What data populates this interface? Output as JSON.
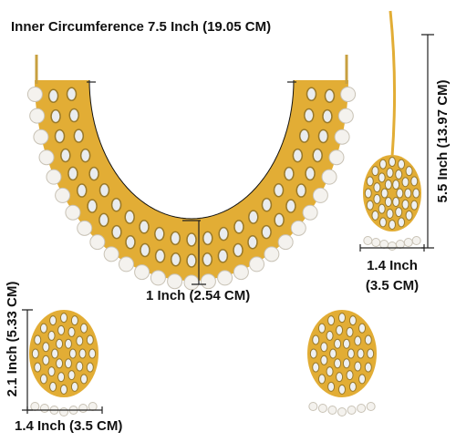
{
  "necklace": {
    "circumference": "Inner Circumference 7.5 Inch (19.05 CM)",
    "depth": "1 Inch (2.54 CM)"
  },
  "maang_tikka": {
    "height": "5.5 Inch (13.97 CM)",
    "width_inch": "1.4 Inch",
    "width_cm": "(3.5 CM)"
  },
  "earring": {
    "height": "2.1 Inch (5.33 CM)",
    "width": "1.4 Inch (3.5 CM)"
  }
}
